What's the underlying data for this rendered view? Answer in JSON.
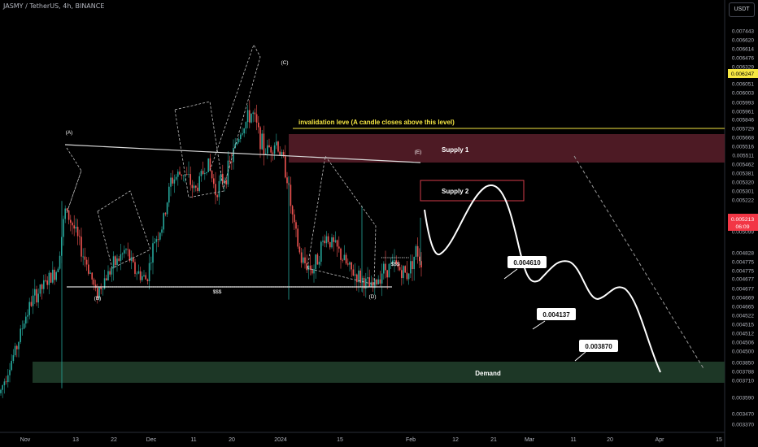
{
  "header": {
    "symbol_title": "JASMY / TetherUS, 4h, BINANCE",
    "unit_button": "USDT"
  },
  "price_scale": [
    "0.007443",
    "0.006620",
    "0.006614",
    "0.006476",
    "0.006329",
    "0.006247",
    "0.006051",
    "0.006003",
    "0.005993",
    "0.005961",
    "0.005846",
    "0.005729",
    "0.005668",
    "0.005516",
    "0.005511",
    "0.005462",
    "0.005381",
    "0.005320",
    "0.005301",
    "0.005222",
    "0.005099",
    "0.004828",
    "0.004775",
    "0.004775",
    "0.004677",
    "0.004677",
    "0.004669",
    "0.004665",
    "0.004522",
    "0.004515",
    "0.004512",
    "0.004506",
    "0.004500",
    "0.003850",
    "0.003788",
    "0.003710",
    "0.003590",
    "0.003470",
    "0.003370"
  ],
  "highlighted_prices": {
    "yellow": "0.006247",
    "current": "0.005213",
    "countdown": "06:09"
  },
  "time_axis": [
    "Nov",
    "13",
    "22",
    "Dec",
    "11",
    "20",
    "2024",
    "15",
    "Feb",
    "12",
    "21",
    "Mar",
    "11",
    "20",
    "Apr",
    "15"
  ],
  "colors": {
    "bull": "#26a69a",
    "bear": "#ef5350",
    "supply_zone": "#5b1f2a",
    "demand_zone": "#1f3a28",
    "invalidation": "#f5e642",
    "yellow_tag": "#f5e642",
    "current_tag": "#f23645"
  },
  "annotations": {
    "wave_labels": [
      "(A)",
      "(B)",
      "(C)",
      "(D)",
      "(E)"
    ],
    "invalidation": "invalidation leve (A candle closes above this level)",
    "supply1": "Supply 1",
    "supply2": "Supply 2",
    "demand": "Demand",
    "liquidity": [
      "$$$",
      "$$$"
    ],
    "targets": [
      "0.004610",
      "0.004137",
      "0.003870"
    ]
  },
  "chart_data": {
    "type": "candlestick",
    "title": "JASMY / TetherUS, 4h, BINANCE",
    "y_range": [
      0.00337,
      0.00744
    ],
    "key_levels": {
      "supply1": [
        0.00551,
        0.00567
      ],
      "supply2": [
        0.0053,
        0.0054
      ],
      "demand": [
        0.00371,
        0.00385
      ],
      "invalidation": 0.00573
    },
    "projection_targets": [
      0.00461,
      0.004137,
      0.00387
    ],
    "price_path": [
      {
        "t": 0,
        "p": 0.00375
      },
      {
        "t": 10,
        "p": 0.004
      },
      {
        "t": 20,
        "p": 0.0042
      },
      {
        "t": 30,
        "p": 0.0045
      },
      {
        "t": 40,
        "p": 0.0047
      },
      {
        "t": 50,
        "p": 0.0048
      },
      {
        "t": 60,
        "p": 0.0049
      },
      {
        "t": 70,
        "p": 0.005
      },
      {
        "t": 80,
        "p": 0.0056
      },
      {
        "t": 90,
        "p": 0.00545
      },
      {
        "t": 100,
        "p": 0.0052
      },
      {
        "t": 110,
        "p": 0.005
      },
      {
        "t": 118,
        "p": 0.00475
      },
      {
        "t": 128,
        "p": 0.0049
      },
      {
        "t": 140,
        "p": 0.00505
      },
      {
        "t": 155,
        "p": 0.0052
      },
      {
        "t": 165,
        "p": 0.005
      },
      {
        "t": 180,
        "p": 0.0049
      },
      {
        "t": 190,
        "p": 0.0053
      },
      {
        "t": 200,
        "p": 0.00545
      },
      {
        "t": 210,
        "p": 0.0059
      },
      {
        "t": 225,
        "p": 0.006
      },
      {
        "t": 240,
        "p": 0.0058
      },
      {
        "t": 255,
        "p": 0.0061
      },
      {
        "t": 265,
        "p": 0.0058
      },
      {
        "t": 280,
        "p": 0.006
      },
      {
        "t": 295,
        "p": 0.0064
      },
      {
        "t": 310,
        "p": 0.0066
      },
      {
        "t": 325,
        "p": 0.0062
      },
      {
        "t": 340,
        "p": 0.0063
      },
      {
        "t": 352,
        "p": 0.006
      },
      {
        "t": 360,
        "p": 0.0055
      },
      {
        "t": 370,
        "p": 0.0051
      },
      {
        "t": 385,
        "p": 0.005
      },
      {
        "t": 400,
        "p": 0.00535
      },
      {
        "t": 415,
        "p": 0.0052
      },
      {
        "t": 430,
        "p": 0.005
      },
      {
        "t": 445,
        "p": 0.0049
      },
      {
        "t": 458,
        "p": 0.0048
      },
      {
        "t": 470,
        "p": 0.005
      },
      {
        "t": 485,
        "p": 0.00505
      },
      {
        "t": 500,
        "p": 0.00495
      },
      {
        "t": 512,
        "p": 0.0052
      },
      {
        "t": 518,
        "p": 0.0051
      }
    ]
  }
}
